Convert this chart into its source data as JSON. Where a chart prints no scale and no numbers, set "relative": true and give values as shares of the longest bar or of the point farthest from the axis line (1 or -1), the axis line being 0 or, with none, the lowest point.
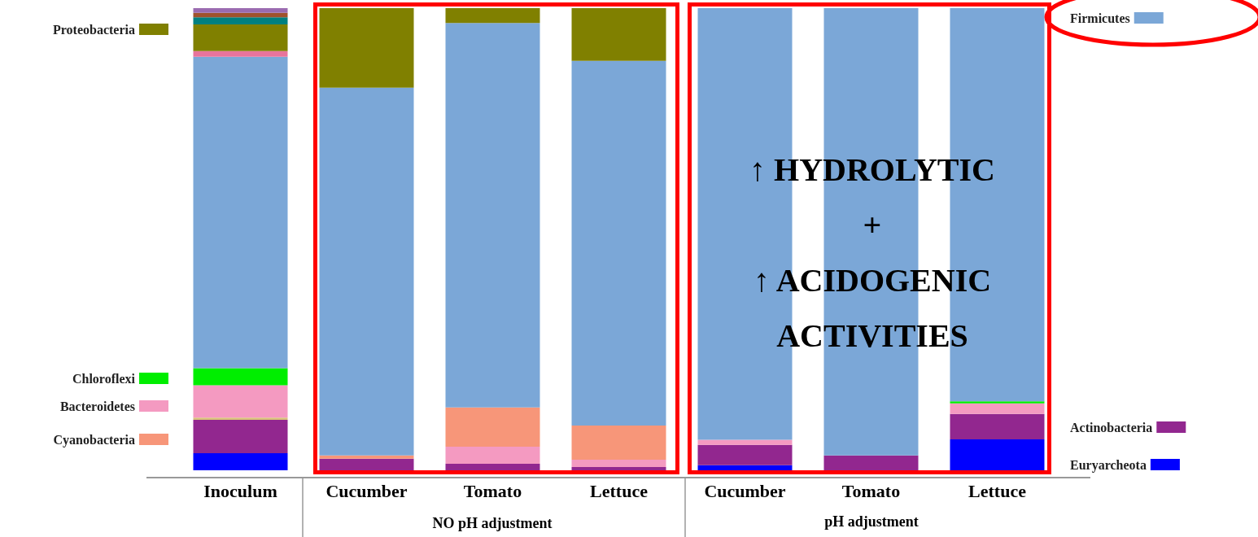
{
  "chart_data": {
    "type": "bar",
    "stacked": true,
    "relative": true,
    "legend": "left",
    "categories": [
      "Inoculum",
      "Cucumber",
      "Tomato",
      "Lettuce",
      "Cucumber",
      "Tomato",
      "Lettuce"
    ],
    "series": [
      {
        "name": "Euryarcheota",
        "color": "#0000ff",
        "values": [
          0.037,
          null,
          null,
          null,
          0.011,
          null,
          0.067
        ]
      },
      {
        "name": "Actinobacteria",
        "color": "#92278f",
        "values": [
          0.072,
          0.025,
          0.014,
          0.007,
          0.044,
          0.032,
          0.055
        ]
      },
      {
        "color": "#d9c27a",
        "values": [
          0.005,
          null,
          null,
          null,
          null,
          null,
          null
        ]
      },
      {
        "name": "Bacteroidetes",
        "color": "#f49ac1",
        "values": [
          0.07,
          null,
          0.037,
          0.016,
          0.011,
          null,
          0.023
        ]
      },
      {
        "name": "Cyanobacteria",
        "color": "#f79679",
        "values": [
          null,
          0.007,
          0.085,
          0.074,
          null,
          null,
          null
        ]
      },
      {
        "name": "Chloroflexi",
        "color": "#00ee00",
        "values": [
          0.037,
          null,
          null,
          null,
          null,
          null,
          0.004
        ]
      },
      {
        "name": "Firmicutes",
        "color": "#7ba7d7",
        "values": [
          0.674,
          0.796,
          0.832,
          0.789,
          0.934,
          0.968,
          0.851
        ]
      },
      {
        "color": "#e8749c",
        "values": [
          0.012,
          null,
          null,
          null,
          null,
          null,
          null
        ]
      },
      {
        "name": "Proteobacteria",
        "color": "#808000",
        "values": [
          0.058,
          0.172,
          0.032,
          0.114,
          null,
          null,
          null
        ]
      },
      {
        "color": "#008080",
        "values": [
          0.015,
          null,
          null,
          null,
          null,
          null,
          null
        ]
      },
      {
        "color": "#a0522d",
        "values": [
          0.01,
          null,
          null,
          null,
          null,
          null,
          null
        ]
      },
      {
        "color": "#9b6bb0",
        "values": [
          0.01,
          null,
          null,
          null,
          null,
          null,
          null
        ]
      }
    ],
    "annotations": [
      "NO pH adjustment",
      "pH adjustment",
      "↑ HYDROLYTIC\n+\n↑ ACIDOGENIC\nACTIVITIES"
    ]
  }
}
